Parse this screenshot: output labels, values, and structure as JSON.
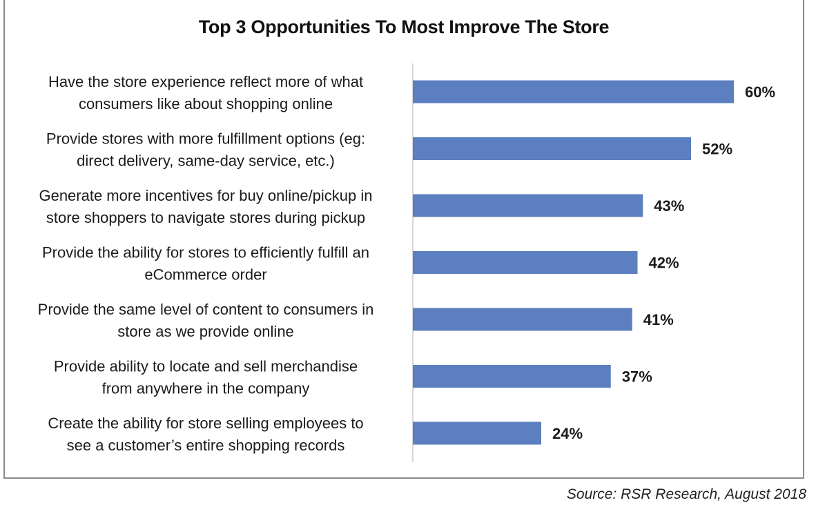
{
  "chart_data": {
    "type": "bar",
    "orientation": "horizontal",
    "title": "Top 3 Opportunities To Most Improve The Store",
    "categories": [
      [
        "Have the store experience reflect more of what",
        "consumers like about shopping online"
      ],
      [
        "Provide stores with more fulfillment options (eg:",
        "direct delivery, same-day service, etc.)"
      ],
      [
        "Generate more incentives for buy online/pickup in",
        "store shoppers to navigate stores during pickup"
      ],
      [
        "Provide the ability for stores to efficiently fulfill an",
        "eCommerce order"
      ],
      [
        "Provide the same level of content to consumers in",
        "store as we provide online"
      ],
      [
        "Provide ability to locate and sell merchandise",
        "from anywhere in the company"
      ],
      [
        "Create the ability for store selling employees to",
        "see a customer’s entire shopping records"
      ]
    ],
    "values": [
      60,
      52,
      43,
      42,
      41,
      37,
      24
    ],
    "value_labels": [
      "60%",
      "52%",
      "43%",
      "42%",
      "41%",
      "37%",
      "24%"
    ],
    "unit": "%",
    "bar_color": "#5B7FC0",
    "grid": false,
    "legend": "none"
  },
  "source": "Source: RSR Research, August 2018"
}
